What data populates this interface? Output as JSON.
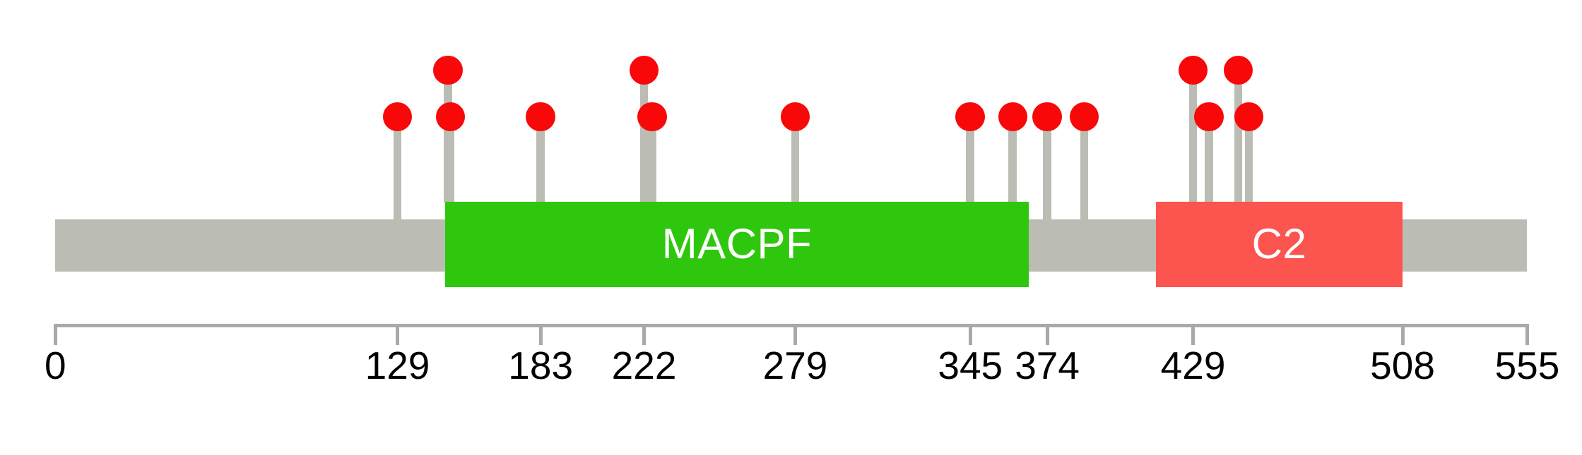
{
  "chart_data": {
    "type": "lollipop",
    "description": "Protein domain lollipop plot with mutation markers",
    "protein_length_aa": 555,
    "xlim": [
      0,
      555
    ],
    "grid": false,
    "legend": false,
    "axis_ticks": [
      0,
      129,
      183,
      222,
      279,
      345,
      374,
      429,
      508,
      555
    ],
    "domains": [
      {
        "name": "MACPF",
        "start_aa": 147,
        "end_aa": 367,
        "color": "#2FC70D",
        "label_color": "#FFFFFF"
      },
      {
        "name": "C2",
        "start_aa": 415,
        "end_aa": 508,
        "color": "#FC544F",
        "label_color": "#FFFFFF"
      }
    ],
    "mutations": [
      {
        "position_aa": 129,
        "tier": "short"
      },
      {
        "position_aa": 148,
        "tier": "tall"
      },
      {
        "position_aa": 149,
        "tier": "short"
      },
      {
        "position_aa": 183,
        "tier": "short"
      },
      {
        "position_aa": 222,
        "tier": "tall"
      },
      {
        "position_aa": 225,
        "tier": "short"
      },
      {
        "position_aa": 279,
        "tier": "short"
      },
      {
        "position_aa": 345,
        "tier": "short"
      },
      {
        "position_aa": 361,
        "tier": "short"
      },
      {
        "position_aa": 374,
        "tier": "short"
      },
      {
        "position_aa": 388,
        "tier": "short"
      },
      {
        "position_aa": 429,
        "tier": "tall"
      },
      {
        "position_aa": 435,
        "tier": "short"
      },
      {
        "position_aa": 446,
        "tier": "tall"
      },
      {
        "position_aa": 450,
        "tier": "short"
      }
    ],
    "colors": {
      "marker": "#F80808",
      "backbone": "#BBBDB5",
      "stick": "#BBBDB5",
      "axis": "#A9A9A9",
      "tick_label": "#000000",
      "background": "#FFFFFF"
    }
  }
}
